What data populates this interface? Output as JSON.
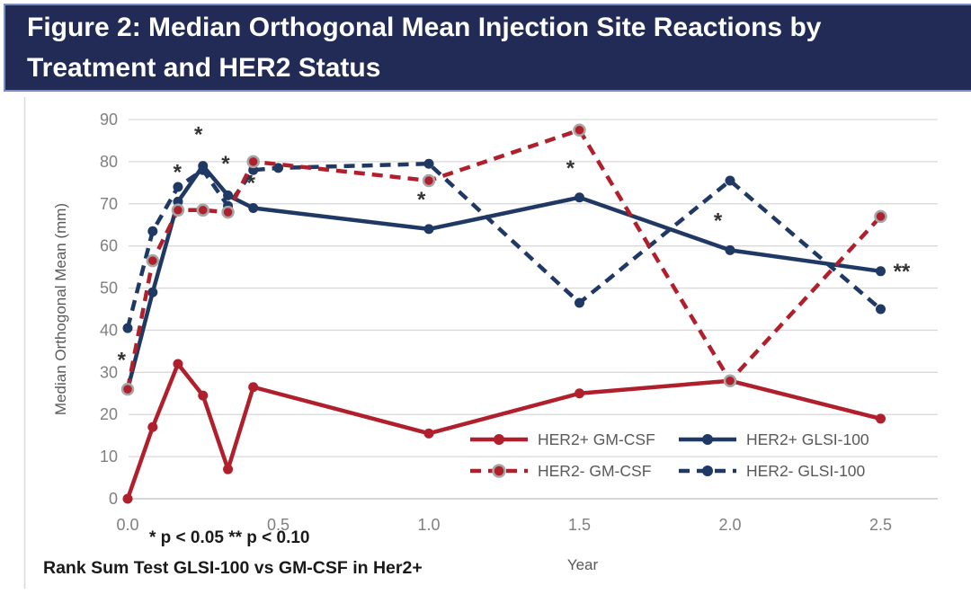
{
  "header": {
    "title_line1": "Figure 2: Median Orthogonal Mean Injection Site Reactions by",
    "title_line2": "Treatment and HER2 Status",
    "background_color": "#212B56",
    "border_color": "#7C8DBF",
    "text_color": "#FFFFFF"
  },
  "chart_data": {
    "type": "line",
    "title": "Figure 2: Median Orthogonal Mean Injection Site Reactions by Treatment and HER2 Status",
    "xlabel": "Year",
    "ylabel": "Median Orthogonal Mean (mm)",
    "xlim": [
      0,
      2.7
    ],
    "ylim": [
      0,
      90
    ],
    "x_ticks": [
      {
        "value": 0.0,
        "label": "0.0"
      },
      {
        "value": 0.5,
        "label": "0.5"
      },
      {
        "value": 1.0,
        "label": "1.0"
      },
      {
        "value": 1.5,
        "label": "1.5"
      },
      {
        "value": 2.0,
        "label": "2.0"
      },
      {
        "value": 2.5,
        "label": "2.5"
      }
    ],
    "y_ticks": [
      0,
      10,
      20,
      30,
      40,
      50,
      60,
      70,
      80,
      90
    ],
    "grid": true,
    "gridline_color": "#D9D9D9",
    "axis_text_color": "#7F7F7F",
    "axis_title_color": "#595959",
    "series": [
      {
        "name": "HER2+ GM-CSF",
        "color": "#B0202C",
        "line_style": "solid",
        "marker_ring": false,
        "x": [
          0,
          0.083,
          0.167,
          0.25,
          0.333,
          0.417,
          1.0,
          1.5,
          2.0,
          2.5
        ],
        "y": [
          0,
          17,
          32,
          24.5,
          7,
          26.5,
          15.5,
          25,
          28,
          19
        ]
      },
      {
        "name": "HER2+ GLSI-100",
        "color": "#1F3864",
        "line_style": "solid",
        "marker_ring": false,
        "x": [
          0,
          0.083,
          0.167,
          0.25,
          0.333,
          0.417,
          1.0,
          1.5,
          2.0,
          2.5
        ],
        "y": [
          26,
          49,
          70.5,
          79,
          72,
          69,
          64,
          71.5,
          59,
          54
        ]
      },
      {
        "name": "HER2- GM-CSF",
        "color": "#B0202C",
        "line_style": "dashed",
        "marker_ring": true,
        "x": [
          0,
          0.083,
          0.167,
          0.25,
          0.333,
          0.417,
          1.0,
          1.5,
          2.0,
          2.5
        ],
        "y": [
          26,
          56.5,
          68.5,
          68.5,
          68,
          80,
          75.5,
          87.5,
          28,
          67
        ]
      },
      {
        "name": "HER2- GLSI-100",
        "color": "#1F3864",
        "line_style": "dashed",
        "marker_ring": false,
        "x": [
          0,
          0.083,
          0.167,
          0.25,
          0.333,
          0.417,
          0.5,
          1.0,
          1.5,
          2.0,
          2.5
        ],
        "y": [
          40.5,
          63.5,
          74,
          78,
          69.5,
          78,
          78.5,
          79.5,
          46.5,
          75.5,
          45
        ]
      }
    ],
    "annotations": [
      {
        "x": -0.02,
        "y": 33,
        "text": "*"
      },
      {
        "x": 0.165,
        "y": 77.5,
        "text": "*"
      },
      {
        "x": 0.235,
        "y": 86.5,
        "text": "*"
      },
      {
        "x": 0.325,
        "y": 79.5,
        "text": "*"
      },
      {
        "x": 0.41,
        "y": 75,
        "text": "*"
      },
      {
        "x": 0.975,
        "y": 71,
        "text": "*"
      },
      {
        "x": 1.47,
        "y": 78.5,
        "text": "*"
      },
      {
        "x": 1.96,
        "y": 66,
        "text": "*"
      },
      {
        "x": 2.57,
        "y": 54,
        "text": "**"
      }
    ],
    "legend": {
      "position": "inside-bottom-right",
      "text_color": "#595959",
      "items": [
        "HER2+ GM-CSF",
        "HER2+ GLSI-100",
        "HER2- GM-CSF",
        "HER2- GLSI-100"
      ]
    },
    "footnotes": {
      "significance": "* p < 0.05  ** p < 0.10",
      "test": "Rank Sum Test GLSI-100 vs GM-CSF in Her2+"
    }
  }
}
